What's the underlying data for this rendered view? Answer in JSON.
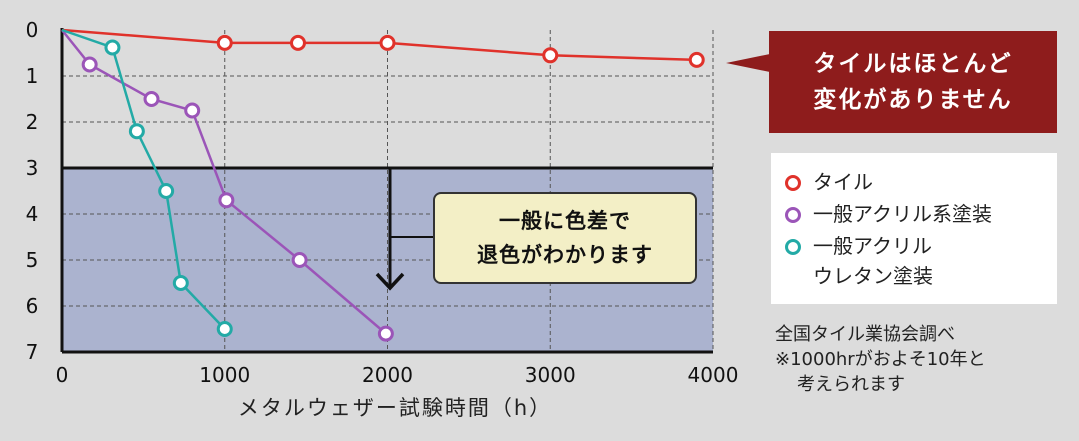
{
  "chart_data": {
    "type": "line",
    "xlabel": "メタルウェザー試験時間（h）",
    "ylabel": "",
    "xlim": [
      0,
      4000
    ],
    "ylim": [
      0,
      7
    ],
    "y_inverted": true,
    "x_ticks": [
      "0",
      "1000",
      "2000",
      "3000",
      "4000"
    ],
    "y_ticks": [
      "0",
      "1",
      "2",
      "3",
      "4",
      "5",
      "6",
      "7"
    ],
    "grid": true,
    "shaded_region": {
      "y_from": 3,
      "y_to": 7,
      "color": "#abb3cf"
    },
    "series": [
      {
        "name": "タイル",
        "color": "#e0322b",
        "points": [
          [
            0,
            0
          ],
          [
            1000,
            0.28
          ],
          [
            1450,
            0.28
          ],
          [
            2000,
            0.28
          ],
          [
            3000,
            0.55
          ],
          [
            3900,
            0.65
          ]
        ]
      },
      {
        "name": "一般アクリル系塗装",
        "color": "#9b55b8",
        "points": [
          [
            0,
            0
          ],
          [
            170,
            0.75
          ],
          [
            550,
            1.5
          ],
          [
            800,
            1.75
          ],
          [
            1010,
            3.7
          ],
          [
            1460,
            5.0
          ],
          [
            1990,
            6.6
          ]
        ]
      },
      {
        "name": "一般アクリルウレタン塗装",
        "color": "#23aaa6",
        "points": [
          [
            0,
            0
          ],
          [
            310,
            0.38
          ],
          [
            460,
            2.2
          ],
          [
            640,
            3.5
          ],
          [
            730,
            5.5
          ],
          [
            1000,
            6.5
          ]
        ]
      }
    ]
  },
  "callout": {
    "line1": "タイルはほとんど",
    "line2": "変化がありません"
  },
  "annotation": {
    "line1": "一般に色差で",
    "line2": "退色がわかります"
  },
  "legend": {
    "tile": "タイル",
    "acrylic": "一般アクリル系塗装",
    "urethan_line1": "一般アクリル",
    "urethan_line2": "ウレタン塗装"
  },
  "footnote": {
    "line1": "全国タイル業協会調べ",
    "line2": "※1000hrがおよそ10年と",
    "line3": "考えられます"
  }
}
